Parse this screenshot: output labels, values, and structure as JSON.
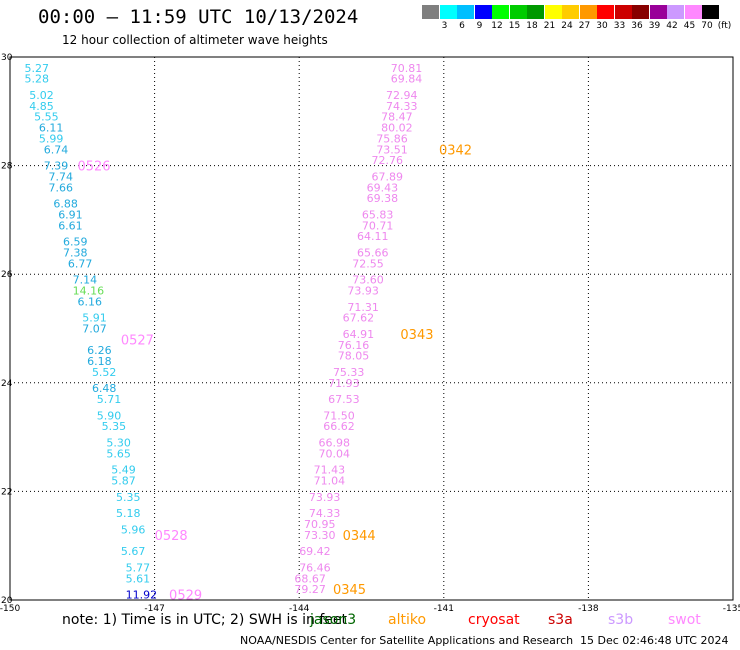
{
  "header": {
    "title": "00:00 – 11:59 UTC 10/13/2024",
    "subtitle": "12 hour collection of altimeter wave heights"
  },
  "colorbar": {
    "colors": [
      "#7f7f7f",
      "#00ffff",
      "#00bfff",
      "#0000ff",
      "#00ff00",
      "#00cc00",
      "#009900",
      "#ffff00",
      "#ffcc00",
      "#ff9900",
      "#ff0000",
      "#cc0000",
      "#880000",
      "#990099",
      "#cc99ff",
      "#ff88ff",
      "#000000"
    ],
    "labels": [
      "3",
      "6",
      "9",
      "12",
      "15",
      "18",
      "21",
      "24",
      "27",
      "30",
      "33",
      "36",
      "39",
      "42",
      "45",
      "70",
      "(ft)"
    ]
  },
  "note": {
    "text": "note: 1) Time is in UTC; 2) SWH is in feet",
    "satellites": [
      {
        "name": "jason3",
        "color": "#006600"
      },
      {
        "name": "altiko",
        "color": "#ff9900"
      },
      {
        "name": "cryosat",
        "color": "#ff0000"
      },
      {
        "name": "s3a",
        "color": "#cc0000"
      },
      {
        "name": "s3b",
        "color": "#cc99ff"
      },
      {
        "name": "swot",
        "color": "#ff88ff"
      }
    ]
  },
  "footer": {
    "left": "NOAA/NESDIS Center for Satellite Applications and Research",
    "right": "15 Dec 02:46:48 UTC 2024"
  },
  "chart_data": {
    "type": "scatter",
    "xlim": [
      -150,
      -135
    ],
    "ylim": [
      20,
      30
    ],
    "xticks": [
      "-150",
      "-147",
      "-144",
      "-141",
      "-138",
      "-135"
    ],
    "yticks": [
      "30",
      "28",
      "26",
      "24",
      "22",
      "20"
    ],
    "grid": true,
    "tracks": [
      {
        "color": "#00dddd",
        "points": [
          {
            "lon": -149.7,
            "lat": 29.8,
            "v": "5.27",
            "c": "#33ccee"
          },
          {
            "lon": -149.7,
            "lat": 29.6,
            "v": "5.28",
            "c": "#33ccee"
          },
          {
            "lon": -149.6,
            "lat": 29.3,
            "v": "5.02",
            "c": "#33ccee"
          },
          {
            "lon": -149.6,
            "lat": 29.1,
            "v": "4.85",
            "c": "#33ccee"
          },
          {
            "lon": -149.5,
            "lat": 28.9,
            "v": "5.55",
            "c": "#33ccee"
          },
          {
            "lon": -149.4,
            "lat": 28.7,
            "v": "6.11",
            "c": "#22aadd"
          },
          {
            "lon": -149.4,
            "lat": 28.5,
            "v": "5.99",
            "c": "#33ccee"
          },
          {
            "lon": -149.3,
            "lat": 28.3,
            "v": "6.74",
            "c": "#22aadd"
          },
          {
            "lon": -149.3,
            "lat": 28.0,
            "v": "7.39",
            "c": "#22aadd"
          },
          {
            "lon": -149.2,
            "lat": 27.8,
            "v": "7.74",
            "c": "#22aadd"
          },
          {
            "lon": -149.2,
            "lat": 27.6,
            "v": "7.66",
            "c": "#22aadd"
          },
          {
            "lon": -149.1,
            "lat": 27.3,
            "v": "6.88",
            "c": "#22aadd"
          },
          {
            "lon": -149.0,
            "lat": 27.1,
            "v": "6.91",
            "c": "#22aadd"
          },
          {
            "lon": -149.0,
            "lat": 26.9,
            "v": "6.61",
            "c": "#22aadd"
          },
          {
            "lon": -148.9,
            "lat": 26.6,
            "v": "6.59",
            "c": "#22aadd"
          },
          {
            "lon": -148.9,
            "lat": 26.4,
            "v": "7.38",
            "c": "#22aadd"
          },
          {
            "lon": -148.8,
            "lat": 26.2,
            "v": "6.77",
            "c": "#22aadd"
          },
          {
            "lon": -148.7,
            "lat": 25.9,
            "v": "7.14",
            "c": "#22aadd"
          },
          {
            "lon": -148.7,
            "lat": 25.7,
            "v": "14.16",
            "c": "#66dd55"
          },
          {
            "lon": -148.6,
            "lat": 25.5,
            "v": "6.16",
            "c": "#22aadd"
          },
          {
            "lon": -148.5,
            "lat": 25.2,
            "v": "5.91",
            "c": "#33ccee"
          },
          {
            "lon": -148.5,
            "lat": 25.0,
            "v": "7.07",
            "c": "#22aadd"
          },
          {
            "lon": -148.4,
            "lat": 24.6,
            "v": "6.26",
            "c": "#22aadd"
          },
          {
            "lon": -148.4,
            "lat": 24.4,
            "v": "6.18",
            "c": "#22aadd"
          },
          {
            "lon": -148.3,
            "lat": 24.2,
            "v": "5.52",
            "c": "#33ccee"
          },
          {
            "lon": -148.3,
            "lat": 23.9,
            "v": "6.48",
            "c": "#22aadd"
          },
          {
            "lon": -148.2,
            "lat": 23.7,
            "v": "5.71",
            "c": "#33ccee"
          },
          {
            "lon": -148.2,
            "lat": 23.4,
            "v": "5.90",
            "c": "#33ccee"
          },
          {
            "lon": -148.1,
            "lat": 23.2,
            "v": "5.35",
            "c": "#33ccee"
          },
          {
            "lon": -148.0,
            "lat": 22.9,
            "v": "5.30",
            "c": "#33ccee"
          },
          {
            "lon": -148.0,
            "lat": 22.7,
            "v": "5.65",
            "c": "#33ccee"
          },
          {
            "lon": -147.9,
            "lat": 22.4,
            "v": "5.49",
            "c": "#33ccee"
          },
          {
            "lon": -147.9,
            "lat": 22.2,
            "v": "5.87",
            "c": "#33ccee"
          },
          {
            "lon": -147.8,
            "lat": 21.9,
            "v": "5.35",
            "c": "#33ccee"
          },
          {
            "lon": -147.8,
            "lat": 21.6,
            "v": "5.18",
            "c": "#33ccee"
          },
          {
            "lon": -147.7,
            "lat": 21.3,
            "v": "5.96",
            "c": "#33ccee"
          },
          {
            "lon": -147.7,
            "lat": 20.9,
            "v": "5.67",
            "c": "#33ccee"
          },
          {
            "lon": -147.6,
            "lat": 20.6,
            "v": "5.77",
            "c": "#33ccee"
          },
          {
            "lon": -147.6,
            "lat": 20.4,
            "v": "5.61",
            "c": "#33ccee"
          },
          {
            "lon": -147.6,
            "lat": 20.1,
            "v": "11.92",
            "c": "#0000cc"
          }
        ]
      },
      {
        "color": "#ff88ff",
        "points": [
          {
            "lon": -142.1,
            "lat": 29.8,
            "v": "70.81",
            "c": "#ee88ee"
          },
          {
            "lon": -142.1,
            "lat": 29.6,
            "v": "69.84",
            "c": "#ee88ee"
          },
          {
            "lon": -142.2,
            "lat": 29.3,
            "v": "72.94",
            "c": "#ee88ee"
          },
          {
            "lon": -142.2,
            "lat": 29.1,
            "v": "74.33",
            "c": "#ee88ee"
          },
          {
            "lon": -142.3,
            "lat": 28.9,
            "v": "78.47",
            "c": "#ee88ee"
          },
          {
            "lon": -142.3,
            "lat": 28.7,
            "v": "80.02",
            "c": "#ee88ee"
          },
          {
            "lon": -142.4,
            "lat": 28.5,
            "v": "75.86",
            "c": "#ee88ee"
          },
          {
            "lon": -142.4,
            "lat": 28.3,
            "v": "73.51",
            "c": "#ee88ee"
          },
          {
            "lon": -142.5,
            "lat": 28.1,
            "v": "72.76",
            "c": "#ee88ee"
          },
          {
            "lon": -142.5,
            "lat": 27.8,
            "v": "67.89",
            "c": "#ee88ee"
          },
          {
            "lon": -142.6,
            "lat": 27.6,
            "v": "69.43",
            "c": "#ee88ee"
          },
          {
            "lon": -142.6,
            "lat": 27.4,
            "v": "69.38",
            "c": "#ee88ee"
          },
          {
            "lon": -142.7,
            "lat": 27.1,
            "v": "65.83",
            "c": "#ee88ee"
          },
          {
            "lon": -142.7,
            "lat": 26.9,
            "v": "70.71",
            "c": "#ee88ee"
          },
          {
            "lon": -142.8,
            "lat": 26.7,
            "v": "64.11",
            "c": "#ee88ee"
          },
          {
            "lon": -142.8,
            "lat": 26.4,
            "v": "65.66",
            "c": "#ee88ee"
          },
          {
            "lon": -142.9,
            "lat": 26.2,
            "v": "72.55",
            "c": "#ee88ee"
          },
          {
            "lon": -142.9,
            "lat": 25.9,
            "v": "73.60",
            "c": "#ee88ee"
          },
          {
            "lon": -143.0,
            "lat": 25.7,
            "v": "73.93",
            "c": "#ee88ee"
          },
          {
            "lon": -143.0,
            "lat": 25.4,
            "v": "71.31",
            "c": "#ee88ee"
          },
          {
            "lon": -143.1,
            "lat": 25.2,
            "v": "67.62",
            "c": "#ee88ee"
          },
          {
            "lon": -143.1,
            "lat": 24.9,
            "v": "64.91",
            "c": "#ee88ee"
          },
          {
            "lon": -143.2,
            "lat": 24.7,
            "v": "76.16",
            "c": "#ee88ee"
          },
          {
            "lon": -143.2,
            "lat": 24.5,
            "v": "78.05",
            "c": "#ee88ee"
          },
          {
            "lon": -143.3,
            "lat": 24.2,
            "v": "75.33",
            "c": "#ee88ee"
          },
          {
            "lon": -143.4,
            "lat": 24.0,
            "v": "71.93",
            "c": "#ee88ee"
          },
          {
            "lon": -143.4,
            "lat": 23.7,
            "v": "67.53",
            "c": "#ee88ee"
          },
          {
            "lon": -143.5,
            "lat": 23.4,
            "v": "71.50",
            "c": "#ee88ee"
          },
          {
            "lon": -143.5,
            "lat": 23.2,
            "v": "66.62",
            "c": "#ee88ee"
          },
          {
            "lon": -143.6,
            "lat": 22.9,
            "v": "66.98",
            "c": "#ee88ee"
          },
          {
            "lon": -143.6,
            "lat": 22.7,
            "v": "70.04",
            "c": "#ee88ee"
          },
          {
            "lon": -143.7,
            "lat": 22.4,
            "v": "71.43",
            "c": "#ee88ee"
          },
          {
            "lon": -143.7,
            "lat": 22.2,
            "v": "71.04",
            "c": "#ee88ee"
          },
          {
            "lon": -143.8,
            "lat": 21.9,
            "v": "73.93",
            "c": "#ee88ee"
          },
          {
            "lon": -143.8,
            "lat": 21.6,
            "v": "74.33",
            "c": "#ee88ee"
          },
          {
            "lon": -143.9,
            "lat": 21.4,
            "v": "70.95",
            "c": "#ee88ee"
          },
          {
            "lon": -143.9,
            "lat": 21.2,
            "v": "73.30",
            "c": "#ee88ee"
          },
          {
            "lon": -144.0,
            "lat": 20.9,
            "v": "69.42",
            "c": "#ee88ee"
          },
          {
            "lon": -144.0,
            "lat": 20.6,
            "v": "76.46",
            "c": "#ee88ee"
          },
          {
            "lon": -144.1,
            "lat": 20.4,
            "v": "68.67",
            "c": "#ee88ee"
          },
          {
            "lon": -144.1,
            "lat": 20.2,
            "v": "79.27",
            "c": "#ee88ee"
          }
        ]
      }
    ],
    "time_labels": [
      {
        "lon": -148.6,
        "lat": 28.0,
        "text": "0526",
        "color": "#ff88ff"
      },
      {
        "lon": -147.7,
        "lat": 24.8,
        "text": "0527",
        "color": "#ff88ff"
      },
      {
        "lon": -147.0,
        "lat": 21.2,
        "text": "0528",
        "color": "#ff88ff"
      },
      {
        "lon": -146.7,
        "lat": 20.1,
        "text": "0529",
        "color": "#ff88ff"
      },
      {
        "lon": -141.1,
        "lat": 28.3,
        "text": "0342",
        "color": "#ff9900"
      },
      {
        "lon": -141.9,
        "lat": 24.9,
        "text": "0343",
        "color": "#ff9900"
      },
      {
        "lon": -143.1,
        "lat": 21.2,
        "text": "0344",
        "color": "#ff9900"
      },
      {
        "lon": -143.3,
        "lat": 20.2,
        "text": "0345",
        "color": "#ff9900"
      }
    ]
  }
}
